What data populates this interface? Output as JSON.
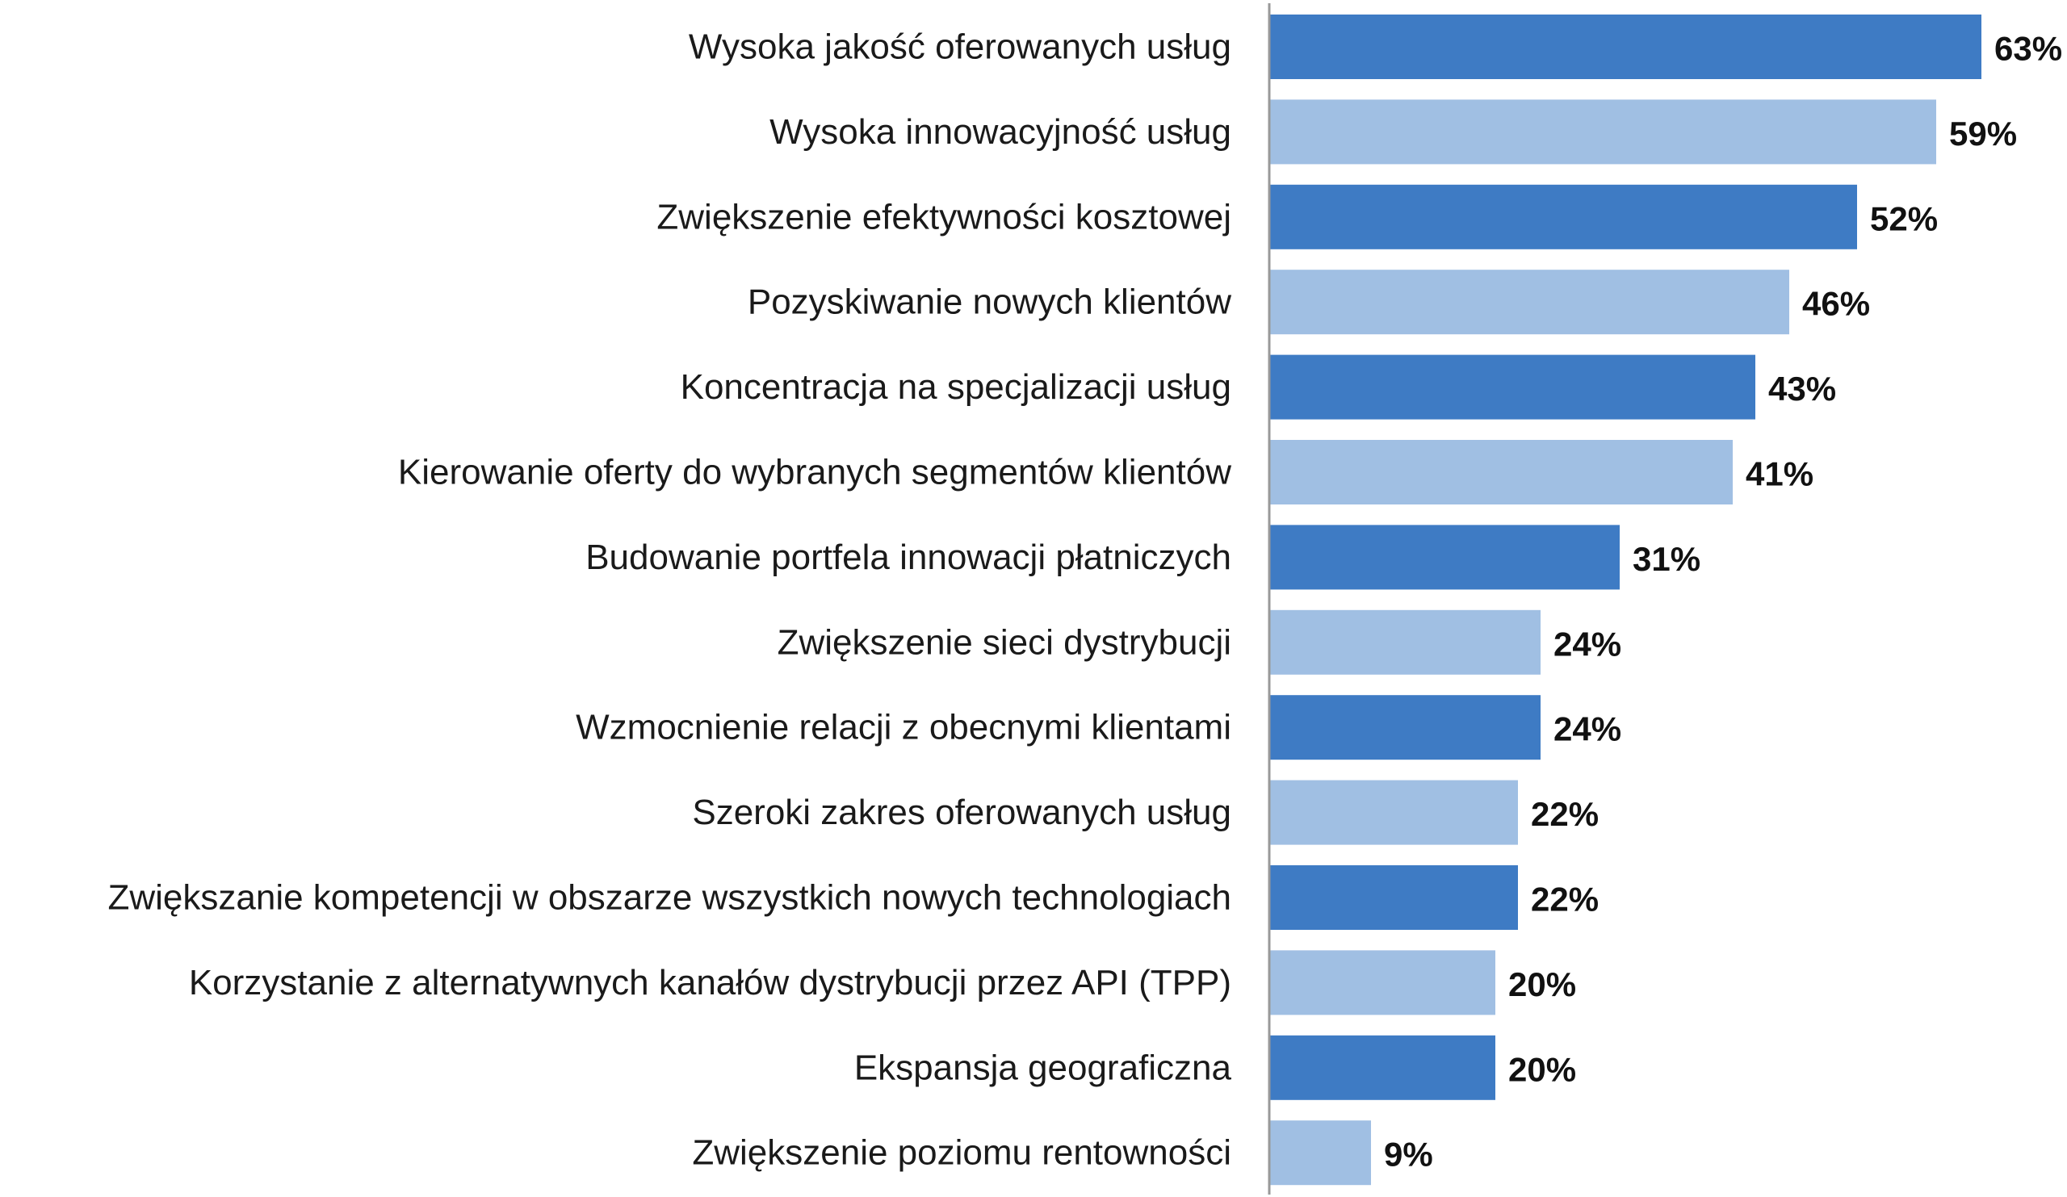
{
  "chart_data": {
    "type": "bar",
    "orientation": "horizontal",
    "title": "",
    "xlabel": "",
    "ylabel": "",
    "unit": "%",
    "xlim": [
      0,
      63
    ],
    "grid": false,
    "legend": "none",
    "colors": {
      "dark": "#3e7bc4",
      "light": "#a0bfe3",
      "axis": "#999999"
    },
    "categories": [
      "Wysoka jakość oferowanych usług",
      "Wysoka innowacyjność usług",
      "Zwiększenie efektywności kosztowej",
      "Pozyskiwanie nowych klientów",
      "Koncentracja na specjalizacji usług",
      "Kierowanie oferty do wybranych segmentów klientów",
      "Budowanie portfela innowacji płatniczych",
      "Zwiększenie sieci dystrybucji",
      "Wzmocnienie relacji z obecnymi klientami",
      "Szeroki zakres oferowanych usług",
      "Zwiększanie kompetencji w obszarze wszystkich nowych technologiach",
      "Korzystanie z alternatywnych kanałów dystrybucji przez API (TPP)",
      "Ekspansja geograficzna",
      "Zwiększenie poziomu rentowności"
    ],
    "values": [
      63,
      59,
      52,
      46,
      43,
      41,
      31,
      24,
      24,
      22,
      22,
      20,
      20,
      9
    ],
    "value_labels": [
      "63%",
      "59%",
      "52%",
      "46%",
      "43%",
      "41%",
      "31%",
      "24%",
      "24%",
      "22%",
      "22%",
      "20%",
      "20%",
      "9%"
    ],
    "bar_colors": [
      "dark",
      "light",
      "dark",
      "light",
      "dark",
      "light",
      "dark",
      "light",
      "dark",
      "light",
      "dark",
      "light",
      "dark",
      "light"
    ]
  }
}
